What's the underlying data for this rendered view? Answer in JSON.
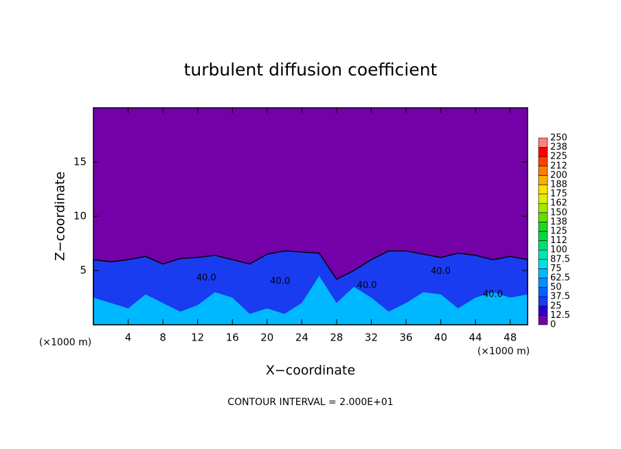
{
  "chart_data": {
    "type": "contour",
    "title": "turbulent diffusion coefficient",
    "x_label": "X−coordinate",
    "y_label": "Z−coordinate",
    "x_unit": "(×1000 m)",
    "y_unit": "(×1000 m)",
    "footer": "CONTOUR INTERVAL = 2.000E+01",
    "xlim": [
      0,
      50
    ],
    "ylim": [
      0,
      20
    ],
    "xticks": [
      4,
      8,
      12,
      16,
      20,
      24,
      28,
      32,
      36,
      40,
      44,
      48
    ],
    "yticks": [
      5,
      10,
      15
    ],
    "x": [
      0,
      2,
      4,
      6,
      8,
      10,
      12,
      14,
      16,
      18,
      20,
      22,
      24,
      26,
      28,
      30,
      32,
      34,
      36,
      38,
      40,
      42,
      44,
      46,
      48,
      50
    ],
    "layers": [
      {
        "level": 25,
        "values": [
          6.0,
          5.8,
          6.0,
          6.3,
          5.6,
          6.1,
          6.2,
          6.4,
          6.0,
          5.6,
          6.5,
          6.8,
          6.7,
          6.6,
          4.2,
          5.0,
          6.0,
          6.8,
          6.8,
          6.5,
          6.2,
          6.6,
          6.4,
          6.0,
          6.3,
          6.0
        ]
      },
      {
        "level": 62.5,
        "values": [
          2.5,
          2.0,
          1.5,
          2.8,
          2.0,
          1.2,
          1.8,
          3.0,
          2.5,
          1.0,
          1.5,
          1.0,
          2.0,
          4.5,
          2.0,
          3.5,
          2.5,
          1.2,
          2.0,
          3.0,
          2.8,
          1.5,
          2.5,
          3.0,
          2.5,
          2.8
        ]
      }
    ],
    "contour_labels": [
      {
        "value": 40,
        "label": "40.0",
        "x": 13,
        "y": 4.3
      },
      {
        "value": 40,
        "label": "40.0",
        "x": 21.5,
        "y": 4.0
      },
      {
        "value": 40,
        "label": "40.0",
        "x": 31.5,
        "y": 3.6
      },
      {
        "value": 40,
        "label": "40.0",
        "x": 40,
        "y": 4.9
      },
      {
        "value": 40,
        "label": "40.0",
        "x": 46,
        "y": 2.8
      }
    ],
    "colorbar": {
      "levels": [
        0,
        {
          "value": 12.5,
          "label": "12.5"
        },
        25,
        {
          "value": 37.5,
          "label": "37.5"
        },
        50,
        {
          "value": 62.5,
          "label": "62.5"
        },
        75,
        {
          "value": 87.5,
          "label": "87.5"
        },
        100,
        {
          "value": 112.5,
          "label": "112"
        },
        125,
        {
          "value": 137.5,
          "label": "138"
        },
        150,
        {
          "value": 162.5,
          "label": "162"
        },
        175,
        {
          "value": 187.5,
          "label": "188"
        },
        200,
        {
          "value": 212.5,
          "label": "212"
        },
        225,
        {
          "value": 237.5,
          "label": "238"
        },
        250
      ],
      "colors": [
        "#7400a8",
        "#2a00c8",
        "#1a3cf0",
        "#0060ff",
        "#0090ff",
        "#00b8ff",
        "#00e0e8",
        "#00e8b0",
        "#00e070",
        "#00d840",
        "#20d820",
        "#60e000",
        "#a0e800",
        "#e0f000",
        "#ffe000",
        "#ffb000",
        "#ff8000",
        "#ff4000",
        "#ff0000",
        "#ff8080"
      ]
    }
  }
}
